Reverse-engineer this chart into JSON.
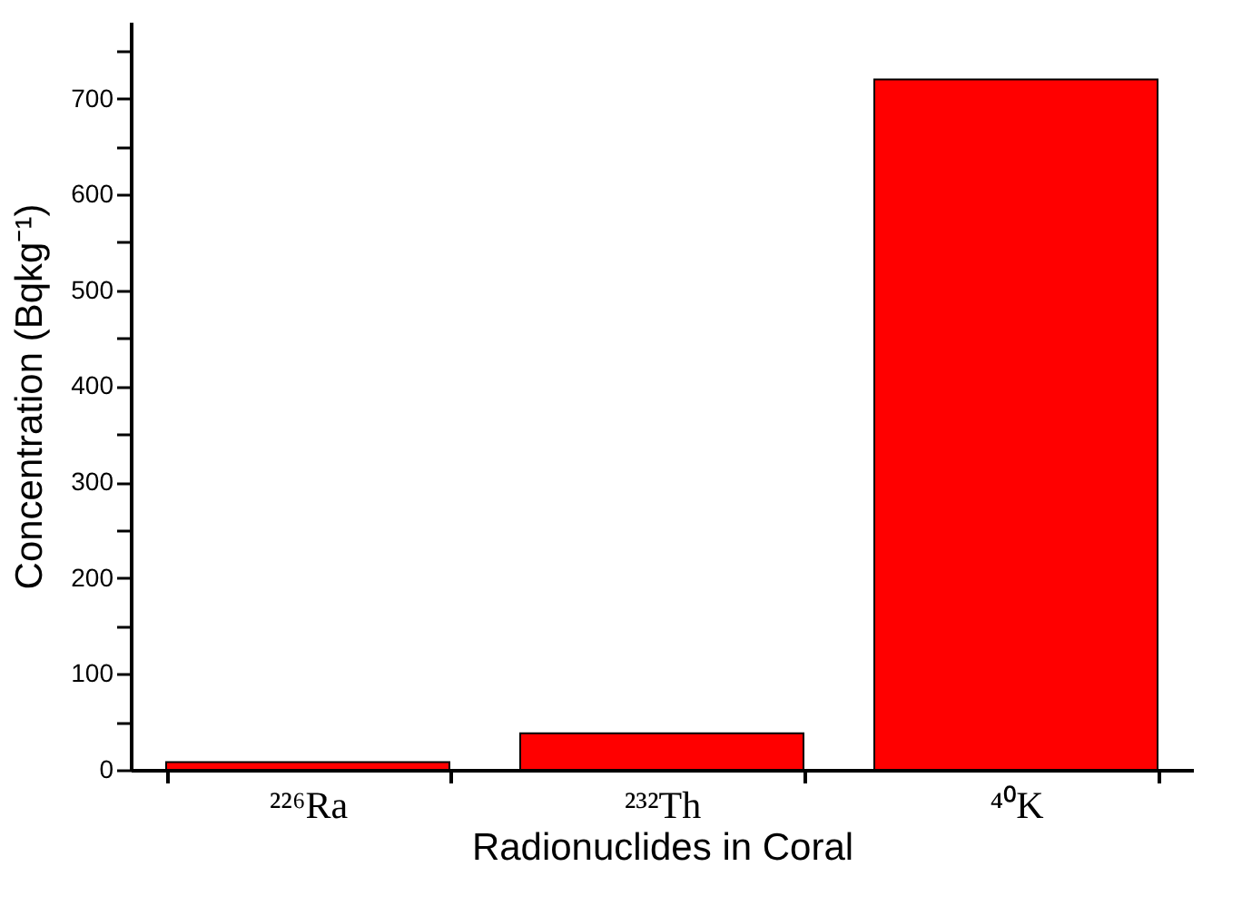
{
  "chart_data": {
    "type": "bar",
    "xlabel": "Radionuclides in Coral",
    "ylabel": "Concentration  (Bqkg⁻¹)",
    "categories": [
      "²²⁶Ra",
      "²³²Th",
      "⁴⁰K"
    ],
    "values": [
      8,
      38,
      720
    ],
    "color": "#ff0000",
    "ylim": [
      0,
      780
    ],
    "yticks": [
      0,
      {
        "value": 50,
        "label": null
      },
      100,
      {
        "value": 150,
        "label": null
      },
      200,
      {
        "value": 250,
        "label": null
      },
      300,
      {
        "value": 350,
        "label": null
      },
      400,
      {
        "value": 450,
        "label": null
      },
      500,
      {
        "value": 550,
        "label": null
      },
      600,
      {
        "value": 650,
        "label": null
      },
      700,
      {
        "value": 750,
        "label": null
      }
    ],
    "grid": false
  }
}
